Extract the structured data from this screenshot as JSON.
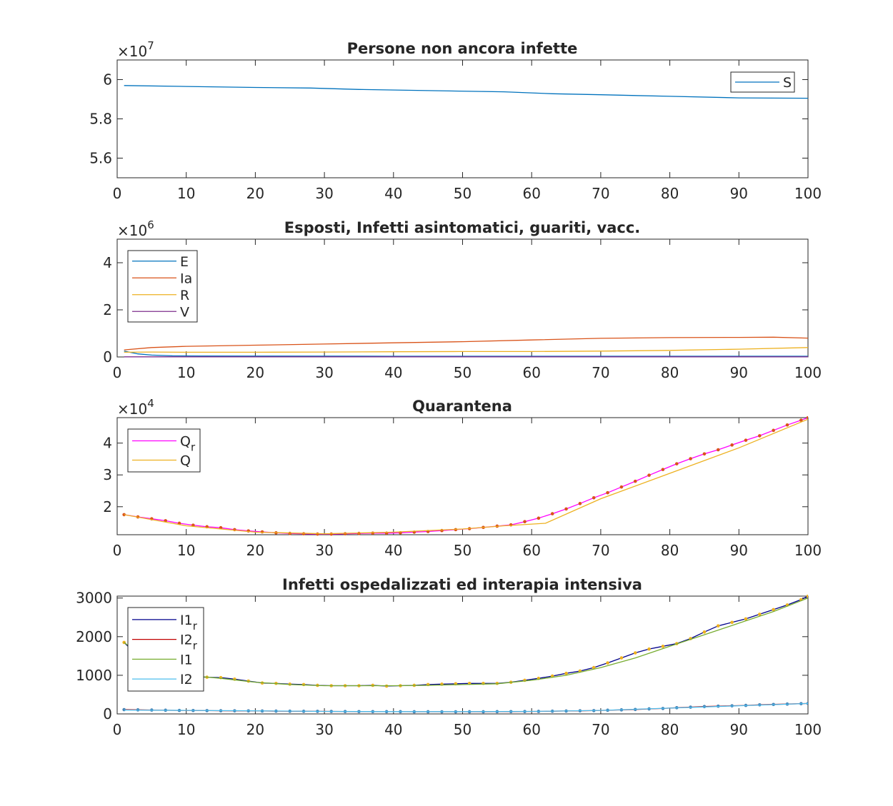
{
  "chart_data": [
    {
      "type": "line",
      "title": "Persone non ancora infette",
      "xlim": [
        0,
        100
      ],
      "ylim": [
        55000000,
        61000000
      ],
      "x_ticks": [
        0,
        10,
        20,
        30,
        40,
        50,
        60,
        70,
        80,
        90,
        100
      ],
      "y_ticks": [
        56000000,
        58000000,
        60000000
      ],
      "y_tick_labels": [
        "5.6",
        "5.8",
        "6"
      ],
      "exponent_base": "×10",
      "exponent_power": "7",
      "legend_position": "top-right",
      "series": [
        {
          "name": "S",
          "color": "#0072bd",
          "x": [
            1,
            10,
            20,
            28,
            35,
            45,
            56,
            63,
            70,
            80,
            90,
            100
          ],
          "y": [
            59700000,
            59650000,
            59600000,
            59570000,
            59500000,
            59440000,
            59380000,
            59280000,
            59230000,
            59150000,
            59070000,
            59050000
          ]
        }
      ]
    },
    {
      "type": "line",
      "title": "Esposti, Infetti asintomatici, guariti, vacc.",
      "xlim": [
        0,
        100
      ],
      "ylim": [
        0,
        5000000
      ],
      "x_ticks": [
        0,
        10,
        20,
        30,
        40,
        50,
        60,
        70,
        80,
        90,
        100
      ],
      "y_ticks": [
        0,
        2000000,
        4000000
      ],
      "y_tick_labels": [
        "0",
        "2",
        "4"
      ],
      "exponent_base": "×10",
      "exponent_power": "6",
      "legend_position": "top-left",
      "series": [
        {
          "name": "E",
          "color": "#0072bd",
          "x": [
            1,
            3,
            5,
            8,
            12,
            20,
            40,
            60,
            80,
            100
          ],
          "y": [
            250000,
            130000,
            80000,
            50000,
            40000,
            35000,
            30000,
            30000,
            30000,
            30000
          ]
        },
        {
          "name": "Ia",
          "color": "#d95319",
          "x": [
            1,
            5,
            10,
            20,
            30,
            40,
            50,
            60,
            70,
            80,
            90,
            95,
            100
          ],
          "y": [
            300000,
            400000,
            450000,
            500000,
            550000,
            600000,
            650000,
            720000,
            790000,
            820000,
            830000,
            840000,
            800000
          ]
        },
        {
          "name": "R",
          "color": "#edb120",
          "x": [
            1,
            5,
            10,
            20,
            30,
            40,
            50,
            60,
            70,
            80,
            90,
            100
          ],
          "y": [
            200000,
            210000,
            200000,
            200000,
            210000,
            220000,
            230000,
            230000,
            250000,
            280000,
            330000,
            400000
          ]
        },
        {
          "name": "V",
          "color": "#7e2f8e",
          "x": [
            1,
            20,
            40,
            60,
            80,
            100
          ],
          "y": [
            5000,
            5000,
            5000,
            5000,
            5000,
            5000
          ]
        }
      ]
    },
    {
      "type": "line",
      "title": "Quarantena",
      "xlim": [
        0,
        100
      ],
      "ylim": [
        11200,
        48000
      ],
      "x_ticks": [
        0,
        10,
        20,
        30,
        40,
        50,
        60,
        70,
        80,
        90,
        100
      ],
      "y_ticks": [
        20000,
        30000,
        40000
      ],
      "y_tick_labels": [
        "2",
        "3",
        "4"
      ],
      "exponent_base": "×10",
      "exponent_power": "4",
      "legend_position": "top-left",
      "series": [
        {
          "name": "Q",
          "subscript": "r",
          "color": "#ff00ff",
          "markers": true,
          "marker_color": "#d95319",
          "x": [
            1,
            3,
            5,
            7,
            9,
            11,
            13,
            15,
            17,
            19,
            21,
            23,
            25,
            27,
            29,
            31,
            33,
            35,
            37,
            39,
            41,
            43,
            45,
            47,
            49,
            51,
            53,
            55,
            57,
            59,
            61,
            63,
            65,
            67,
            69,
            71,
            73,
            75,
            77,
            79,
            81,
            83,
            85,
            87,
            89,
            91,
            93,
            95,
            97,
            99,
            100
          ],
          "y": [
            17500,
            16800,
            16200,
            15600,
            14800,
            14200,
            13700,
            13400,
            12800,
            12400,
            12100,
            11800,
            11600,
            11500,
            11400,
            11400,
            11500,
            11600,
            11700,
            11700,
            11800,
            12000,
            12200,
            12500,
            12800,
            13100,
            13500,
            13900,
            14300,
            15300,
            16400,
            17800,
            19300,
            21000,
            22800,
            24400,
            26200,
            28000,
            29900,
            31700,
            33500,
            35100,
            36600,
            37900,
            39400,
            40900,
            42300,
            44000,
            45700,
            47200,
            48000
          ]
        },
        {
          "name": "Q",
          "color": "#edb120",
          "x": [
            1,
            10,
            20,
            30,
            40,
            50,
            56,
            62,
            70,
            80,
            90,
            100
          ],
          "y": [
            17500,
            14000,
            12000,
            11500,
            12000,
            13000,
            14000,
            14800,
            22500,
            30500,
            38500,
            47500
          ]
        }
      ]
    },
    {
      "type": "line",
      "title": "Infetti ospedalizzati ed interapia intensiva",
      "xlim": [
        0,
        100
      ],
      "ylim": [
        0,
        3050
      ],
      "x_ticks": [
        0,
        10,
        20,
        30,
        40,
        50,
        60,
        70,
        80,
        90,
        100
      ],
      "y_ticks": [
        0,
        1000,
        2000,
        3000
      ],
      "y_tick_labels": [
        "0",
        "1000",
        "2000",
        "3000"
      ],
      "legend_position": "top-left",
      "series": [
        {
          "name": "I1",
          "subscript": "r",
          "color": "#00008b",
          "markers": true,
          "marker_color": "#edb120",
          "x": [
            1,
            3,
            5,
            7,
            9,
            11,
            13,
            15,
            17,
            19,
            21,
            23,
            25,
            27,
            29,
            31,
            33,
            35,
            37,
            39,
            41,
            43,
            45,
            47,
            49,
            51,
            53,
            55,
            57,
            59,
            61,
            63,
            65,
            67,
            69,
            71,
            73,
            75,
            77,
            79,
            81,
            83,
            85,
            87,
            89,
            91,
            93,
            95,
            97,
            99,
            100
          ],
          "y": [
            1850,
            1500,
            1250,
            1100,
            1000,
            960,
            950,
            940,
            900,
            850,
            800,
            790,
            770,
            760,
            740,
            730,
            730,
            730,
            740,
            720,
            730,
            740,
            760,
            770,
            780,
            790,
            790,
            790,
            820,
            870,
            920,
            980,
            1050,
            1110,
            1200,
            1320,
            1450,
            1580,
            1680,
            1750,
            1820,
            1950,
            2120,
            2280,
            2370,
            2460,
            2580,
            2700,
            2820,
            2960,
            3050
          ]
        },
        {
          "name": "I2",
          "subscript": "r",
          "color": "#c00000",
          "markers": true,
          "marker_color": "#4682b4",
          "x": [
            1,
            3,
            5,
            7,
            9,
            11,
            13,
            15,
            17,
            19,
            21,
            23,
            25,
            27,
            29,
            31,
            33,
            35,
            37,
            39,
            41,
            43,
            45,
            47,
            49,
            51,
            53,
            55,
            57,
            59,
            61,
            63,
            65,
            67,
            69,
            71,
            73,
            75,
            77,
            79,
            81,
            83,
            85,
            87,
            89,
            91,
            93,
            95,
            97,
            99,
            100
          ],
          "y": [
            110,
            105,
            100,
            95,
            90,
            88,
            85,
            82,
            80,
            78,
            75,
            72,
            70,
            68,
            66,
            64,
            62,
            60,
            60,
            58,
            58,
            56,
            56,
            55,
            55,
            56,
            56,
            58,
            60,
            62,
            65,
            70,
            75,
            80,
            85,
            95,
            105,
            115,
            130,
            140,
            160,
            175,
            190,
            200,
            210,
            220,
            235,
            245,
            255,
            265,
            270
          ]
        },
        {
          "name": "I1",
          "color": "#77ac30",
          "x": [
            1,
            5,
            10,
            15,
            20,
            25,
            30,
            35,
            40,
            45,
            50,
            55,
            60,
            65,
            70,
            75,
            80,
            85,
            90,
            95,
            100
          ],
          "y": [
            1850,
            1300,
            1000,
            920,
            820,
            760,
            730,
            730,
            730,
            740,
            760,
            780,
            870,
            1000,
            1200,
            1450,
            1750,
            2050,
            2350,
            2650,
            3000
          ]
        },
        {
          "name": "I2",
          "color": "#4dbeee",
          "x": [
            1,
            10,
            20,
            30,
            40,
            50,
            60,
            70,
            80,
            90,
            100
          ],
          "y": [
            100,
            90,
            80,
            65,
            60,
            60,
            65,
            90,
            150,
            210,
            270
          ]
        }
      ]
    }
  ]
}
